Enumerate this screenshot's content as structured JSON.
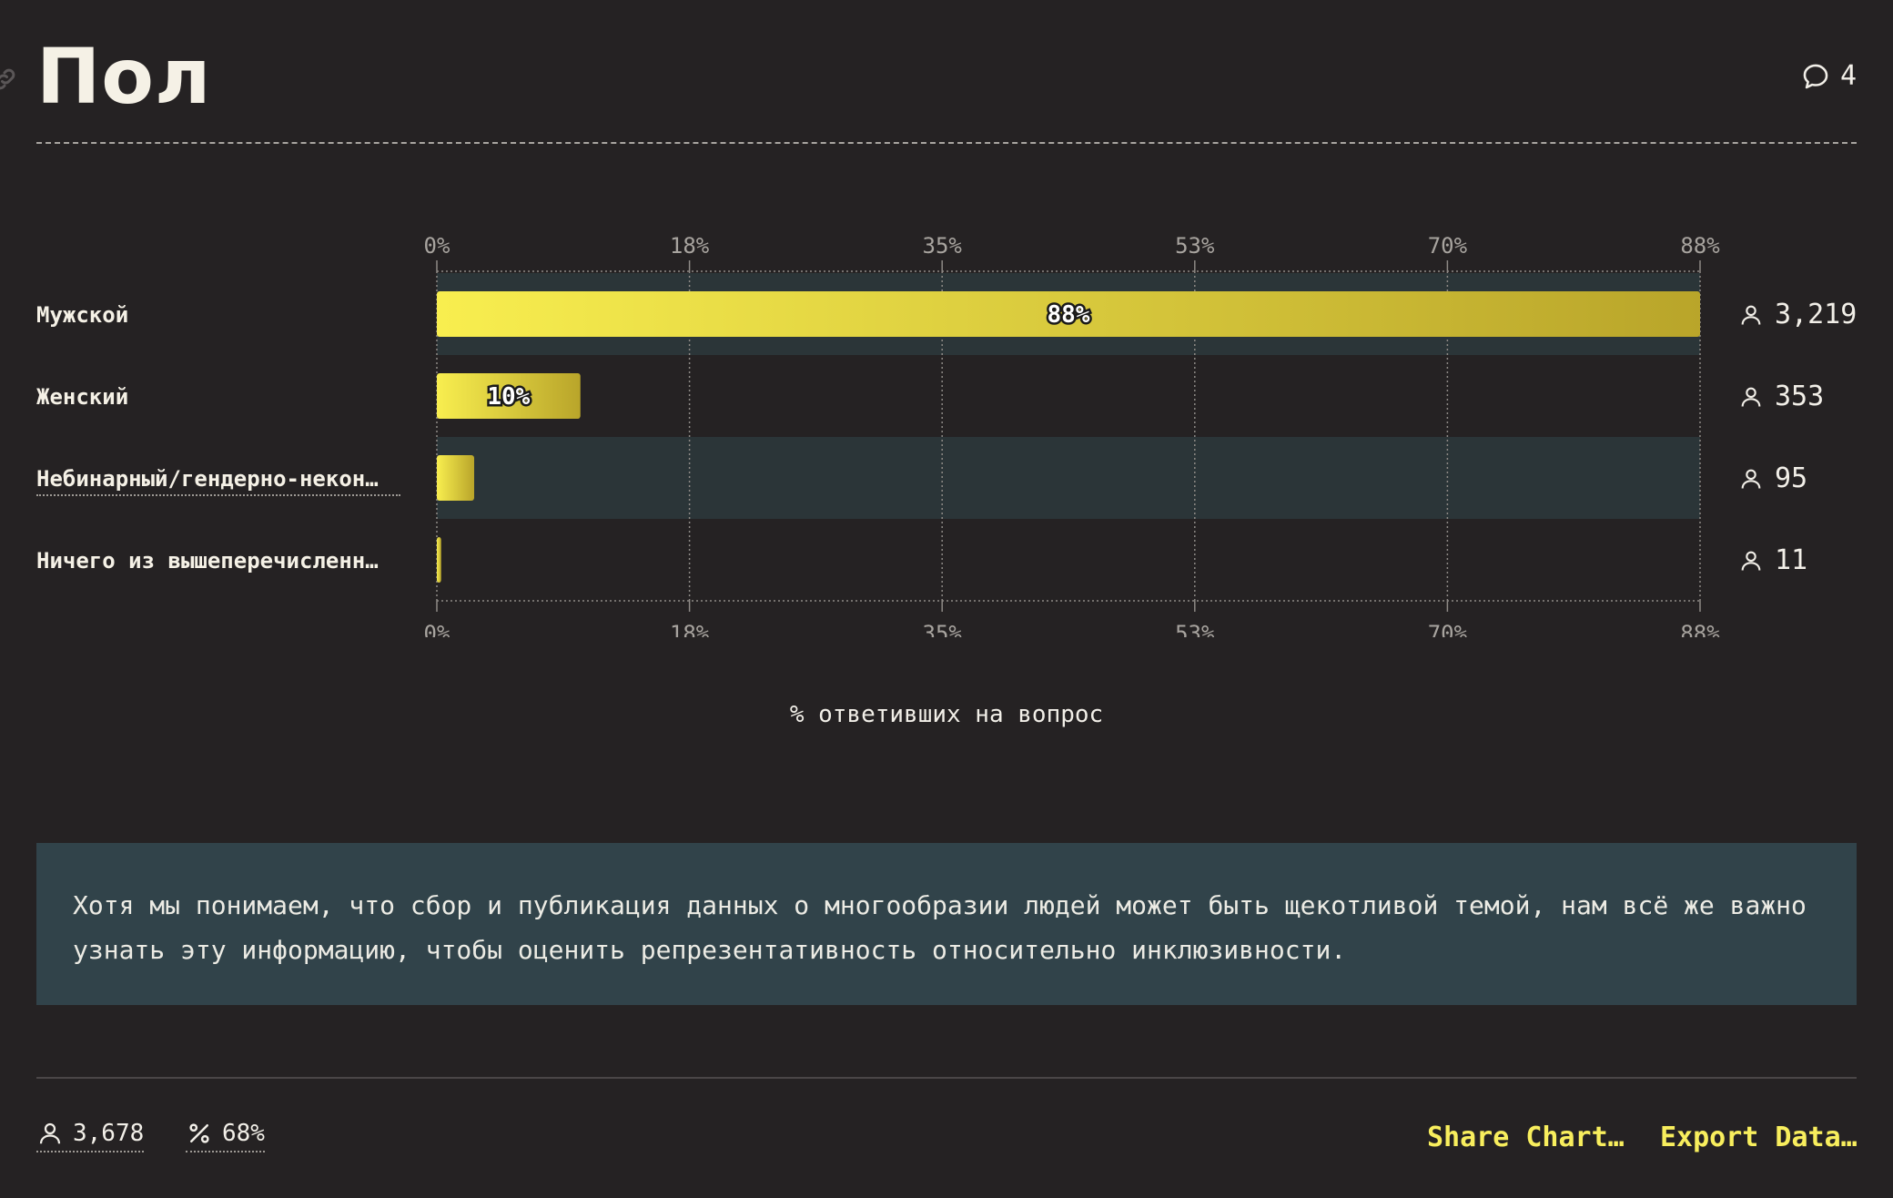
{
  "header": {
    "title": "Пол",
    "comment_count": "4"
  },
  "chart_data": {
    "type": "bar",
    "orientation": "horizontal",
    "categories": [
      "Мужской",
      "Женский",
      "Небинарный/гендерно-некон…",
      "Ничего из вышеперечисленн…"
    ],
    "values": [
      88,
      10,
      2.6,
      0.3
    ],
    "counts": [
      "3,219",
      "353",
      "95",
      "11"
    ],
    "bar_labels": [
      "88%",
      "10%",
      "",
      ""
    ],
    "xlim": [
      0,
      88
    ],
    "xticks": [
      "0%",
      "18%",
      "35%",
      "53%",
      "70%",
      "88%"
    ],
    "xlabel": "% ответивших на вопрос",
    "grid": true,
    "colors": {
      "bar_start": "#f8ee4f",
      "bar_end": "#b9a52a",
      "highlight_row": "#2b3538",
      "stripe_row": "#2b3538"
    }
  },
  "note": {
    "text": "Хотя мы понимаем, что сбор и публикация данных о многообразии людей может быть щекотливой темой, нам всё же важно узнать эту информацию, чтобы оценить репрезентативность относительно инклюзивности."
  },
  "footer": {
    "respondents": "3,678",
    "percent": "68%",
    "share_label": "Share Chart…",
    "export_label": "Export Data…"
  },
  "icons": {
    "link": "link-icon",
    "comment": "comment-icon",
    "person": "person-icon",
    "percent": "percent-icon"
  }
}
